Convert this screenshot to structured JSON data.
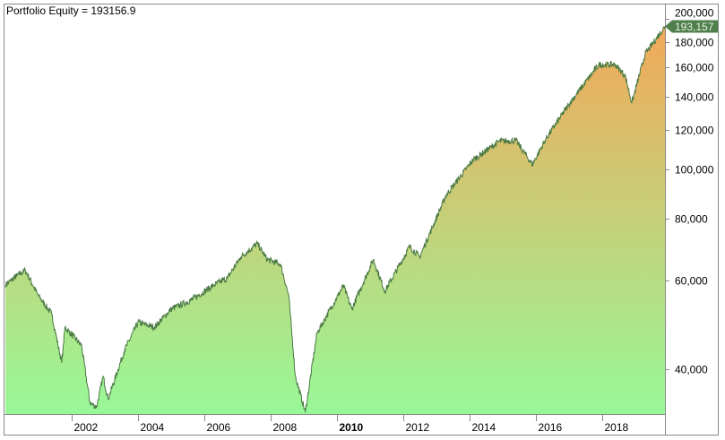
{
  "chart_data": {
    "type": "area",
    "title": "Portfolio Equity = 193156.9",
    "ylabel": "",
    "xlabel": "",
    "yscale": "log",
    "ylim": [
      32560,
      213600
    ],
    "xlim": [
      2000.0,
      2019.9
    ],
    "grid": false,
    "y_ticks": [
      {
        "value": 40000,
        "label": "40,000"
      },
      {
        "value": 60000,
        "label": "60,000"
      },
      {
        "value": 80000,
        "label": "80,000"
      },
      {
        "value": 100000,
        "label": "100,000"
      },
      {
        "value": 120000,
        "label": "120,000"
      },
      {
        "value": 140000,
        "label": "140,000"
      },
      {
        "value": 160000,
        "label": "160,000"
      },
      {
        "value": 180000,
        "label": "180,000"
      },
      {
        "value": 200000,
        "label": "200,000"
      }
    ],
    "x_ticks": [
      {
        "value": 2002,
        "label": "2002",
        "bold": false
      },
      {
        "value": 2004,
        "label": "2004",
        "bold": false
      },
      {
        "value": 2006,
        "label": "2006",
        "bold": false
      },
      {
        "value": 2008,
        "label": "2008",
        "bold": false
      },
      {
        "value": 2010,
        "label": "2010",
        "bold": true
      },
      {
        "value": 2012,
        "label": "2012",
        "bold": false
      },
      {
        "value": 2014,
        "label": "2014",
        "bold": false
      },
      {
        "value": 2016,
        "label": "2016",
        "bold": false
      },
      {
        "value": 2018,
        "label": "2018",
        "bold": false
      }
    ],
    "last_value_label": "193,157",
    "series": [
      {
        "name": "Portfolio Equity",
        "x": [
          2000.0,
          2000.35,
          2000.6,
          2001.0,
          2001.4,
          2001.7,
          2001.8,
          2002.3,
          2002.55,
          2002.75,
          2002.95,
          2003.1,
          2003.6,
          2004.0,
          2004.5,
          2005.0,
          2005.6,
          2006.3,
          2006.7,
          2007.1,
          2007.6,
          2007.9,
          2008.3,
          2008.55,
          2008.75,
          2009.05,
          2009.4,
          2010.2,
          2010.45,
          2011.1,
          2011.45,
          2012.2,
          2012.5,
          2013.3,
          2014.1,
          2014.9,
          2015.4,
          2015.9,
          2016.3,
          2017.0,
          2017.9,
          2018.4,
          2018.7,
          2018.9,
          2019.3,
          2019.9
        ],
        "values": [
          58900,
          61500,
          63000,
          56000,
          51500,
          41200,
          48500,
          44600,
          34300,
          33600,
          38700,
          34900,
          43700,
          49600,
          48500,
          52700,
          54900,
          58900,
          60800,
          67000,
          71200,
          66200,
          64800,
          56000,
          38700,
          32800,
          47200,
          58700,
          52700,
          66200,
          57200,
          70300,
          67000,
          89000,
          104500,
          113900,
          114400,
          102400,
          115000,
          135000,
          162000,
          162000,
          154000,
          136000,
          170000,
          193157
        ]
      }
    ],
    "colors": {
      "line": "#4a7a44",
      "fill_top": "#f2a85a",
      "fill_bottom": "#98f898",
      "tag": "#4f7f4a",
      "tag_text": "#e8f0e8"
    }
  }
}
